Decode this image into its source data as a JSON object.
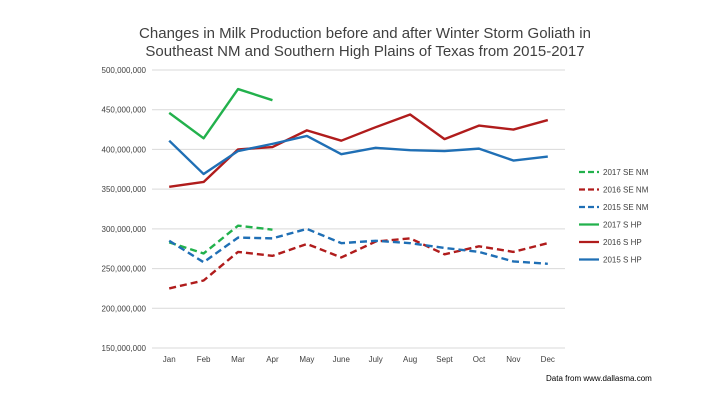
{
  "chart_data": {
    "type": "line",
    "title_lines": [
      "Changes in Milk Production before and after Winter Storm Goliath in",
      "Southeast NM and Southern High Plains of Texas from 2015-2017"
    ],
    "categories": [
      "Jan",
      "Feb",
      "Mar",
      "Apr",
      "May",
      "June",
      "July",
      "Aug",
      "Sept",
      "Oct",
      "Nov",
      "Dec"
    ],
    "ylim": [
      150000000,
      500000000
    ],
    "yticks": [
      150000000,
      200000000,
      250000000,
      300000000,
      350000000,
      400000000,
      450000000,
      500000000
    ],
    "ytick_labels": [
      "150,000,000",
      "200,000,000",
      "250,000,000",
      "300,000,000",
      "350,000,000",
      "400,000,000",
      "450,000,000",
      "500,000,000"
    ],
    "grid": true,
    "legend_position": "right",
    "series": [
      {
        "name": "2017 SE NM",
        "color": "#22b14c",
        "dashed": true,
        "values": [
          283000000,
          269000000,
          304000000,
          299000000,
          null,
          null,
          null,
          null,
          null,
          null,
          null,
          null
        ]
      },
      {
        "name": "2016 SE NM",
        "color": "#b01c1c",
        "dashed": true,
        "values": [
          225000000,
          235000000,
          271000000,
          266000000,
          281000000,
          264000000,
          284000000,
          288000000,
          268000000,
          278000000,
          271000000,
          282000000
        ]
      },
      {
        "name": "2015 SE NM",
        "color": "#1f6fb5",
        "dashed": true,
        "values": [
          285000000,
          258000000,
          289000000,
          288000000,
          300000000,
          282000000,
          285000000,
          282000000,
          276000000,
          271000000,
          259000000,
          256000000
        ]
      },
      {
        "name": "2017 S HP",
        "color": "#22b14c",
        "dashed": false,
        "values": [
          446000000,
          414000000,
          476000000,
          462000000,
          null,
          null,
          null,
          null,
          null,
          null,
          null,
          null
        ]
      },
      {
        "name": "2016 S HP",
        "color": "#b01c1c",
        "dashed": false,
        "values": [
          353000000,
          359000000,
          400000000,
          403000000,
          424000000,
          411000000,
          428000000,
          444000000,
          413000000,
          430000000,
          425000000,
          437000000
        ]
      },
      {
        "name": "2015 S HP",
        "color": "#1f6fb5",
        "dashed": false,
        "values": [
          411000000,
          369000000,
          398000000,
          407000000,
          417000000,
          394000000,
          402000000,
          399000000,
          398000000,
          401000000,
          386000000,
          391000000
        ]
      }
    ],
    "source_note": "Data from www.dallasma.com"
  }
}
